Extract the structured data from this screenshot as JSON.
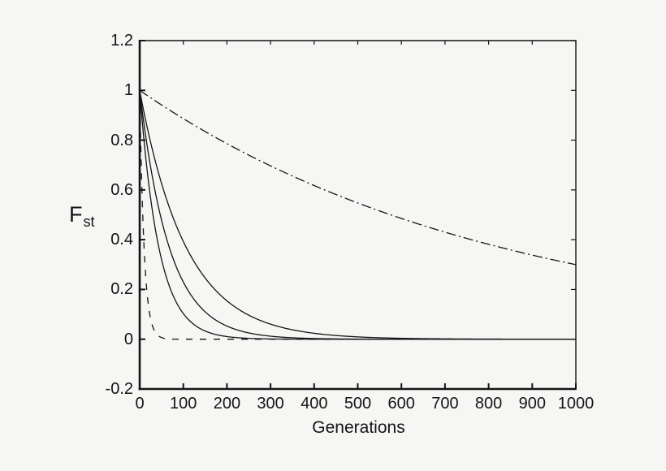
{
  "figure": {
    "background_color": "#f6f6f5",
    "ink_color": "#141414",
    "title": ""
  },
  "chart_data": {
    "type": "line",
    "title": "",
    "xlabel": "Generations",
    "ylabel": "Fst",
    "ylabel_main": "F",
    "ylabel_sub": "st",
    "xlim": [
      0,
      1000
    ],
    "ylim": [
      -0.2,
      1.2
    ],
    "grid": false,
    "legend": "none",
    "x_ticks": [
      0,
      100,
      200,
      300,
      400,
      500,
      600,
      700,
      800,
      900,
      1000
    ],
    "x_tick_labels": [
      "0",
      "100",
      "200",
      "300",
      "400",
      "500",
      "600",
      "700",
      "800",
      "900",
      "1000"
    ],
    "y_ticks": [
      -0.2,
      0,
      0.2,
      0.4,
      0.6,
      0.8,
      1,
      1.2
    ],
    "y_tick_labels": [
      "-0.2",
      "0",
      "0.2",
      "0.4",
      "0.6",
      "0.8",
      "1",
      "1.2"
    ],
    "model": "Fst(t) = y0 * exp(-t / tau)",
    "series": [
      {
        "id": "slowest-dashdot",
        "name": "slowest decay curve (dash-dot)",
        "line_style": "dash-dot",
        "dash": "12 4 2 4",
        "y0": 1.0,
        "tau": 830,
        "approx_points": [
          [
            0,
            1.0
          ],
          [
            100,
            0.886
          ],
          [
            200,
            0.786
          ],
          [
            300,
            0.697
          ],
          [
            400,
            0.617
          ],
          [
            500,
            0.547
          ],
          [
            600,
            0.485
          ],
          [
            700,
            0.43
          ],
          [
            800,
            0.381
          ],
          [
            900,
            0.338
          ],
          [
            1000,
            0.3
          ]
        ]
      },
      {
        "id": "slow-solid",
        "name": "slow solid decay curve",
        "line_style": "solid",
        "dash": "",
        "y0": 1.0,
        "tau": 107,
        "approx_points": [
          [
            0,
            1.0
          ],
          [
            50,
            0.627
          ],
          [
            100,
            0.393
          ],
          [
            200,
            0.154
          ],
          [
            300,
            0.061
          ],
          [
            400,
            0.024
          ],
          [
            500,
            0.009
          ],
          [
            700,
            0.001
          ],
          [
            1000,
            0.0
          ]
        ]
      },
      {
        "id": "medium-solid",
        "name": "medium solid decay curve",
        "line_style": "solid",
        "dash": "",
        "y0": 1.0,
        "tau": 68,
        "approx_points": [
          [
            0,
            1.0
          ],
          [
            50,
            0.479
          ],
          [
            100,
            0.23
          ],
          [
            200,
            0.053
          ],
          [
            300,
            0.012
          ],
          [
            400,
            0.003
          ],
          [
            600,
            0.0
          ],
          [
            1000,
            0.0
          ]
        ]
      },
      {
        "id": "fast-solid",
        "name": "fast solid decay curve",
        "line_style": "solid",
        "dash": "",
        "y0": 1.0,
        "tau": 44,
        "approx_points": [
          [
            0,
            1.0
          ],
          [
            25,
            0.566
          ],
          [
            50,
            0.321
          ],
          [
            100,
            0.103
          ],
          [
            150,
            0.033
          ],
          [
            200,
            0.011
          ],
          [
            300,
            0.001
          ],
          [
            1000,
            0.0
          ]
        ]
      },
      {
        "id": "fastest-dashed",
        "name": "fastest decay curve (dashed)",
        "line_style": "dashed",
        "dash": "8 9",
        "y0": 1.0,
        "tau": 10,
        "approx_points": [
          [
            0,
            1.0
          ],
          [
            10,
            0.368
          ],
          [
            20,
            0.135
          ],
          [
            30,
            0.05
          ],
          [
            40,
            0.018
          ],
          [
            50,
            0.007
          ],
          [
            100,
            0.0
          ],
          [
            1000,
            0.0
          ]
        ]
      }
    ]
  }
}
